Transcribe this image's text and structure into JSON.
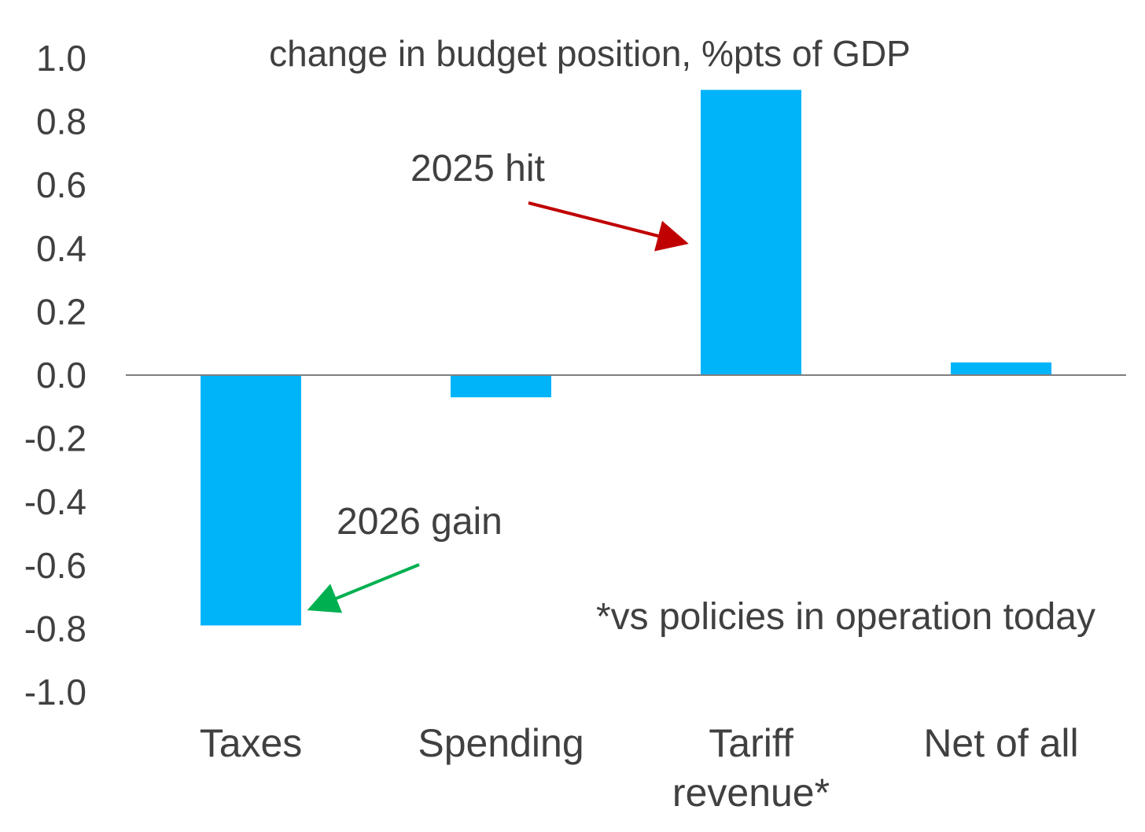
{
  "chart_data": {
    "type": "bar",
    "title": "change in budget position, %pts of GDP",
    "xlabel": "",
    "ylabel": "",
    "categories": [
      [
        "Taxes"
      ],
      [
        "Spending"
      ],
      [
        "Tariff",
        "revenue*"
      ],
      [
        "Net of all"
      ]
    ],
    "values": [
      -0.79,
      -0.07,
      0.9,
      0.04
    ],
    "ylim": [
      -1.0,
      1.0
    ],
    "yticks": [
      "1.0",
      "0.8",
      "0.6",
      "0.4",
      "0.2",
      "0.0",
      "-0.2",
      "-0.4",
      "-0.6",
      "-0.8",
      "-1.0"
    ],
    "ytick_values": [
      1.0,
      0.8,
      0.6,
      0.4,
      0.2,
      0.0,
      -0.2,
      -0.4,
      -0.6,
      -0.8,
      -1.0
    ],
    "grid": false,
    "bar_color": "#00b4fa",
    "annotations": [
      {
        "text": "2025 hit",
        "points_to": "Tariff revenue*",
        "color": "#c00000"
      },
      {
        "text": "2026 gain",
        "points_to": "Taxes",
        "color": "#00b050"
      }
    ],
    "note": "*vs policies in operation today"
  }
}
